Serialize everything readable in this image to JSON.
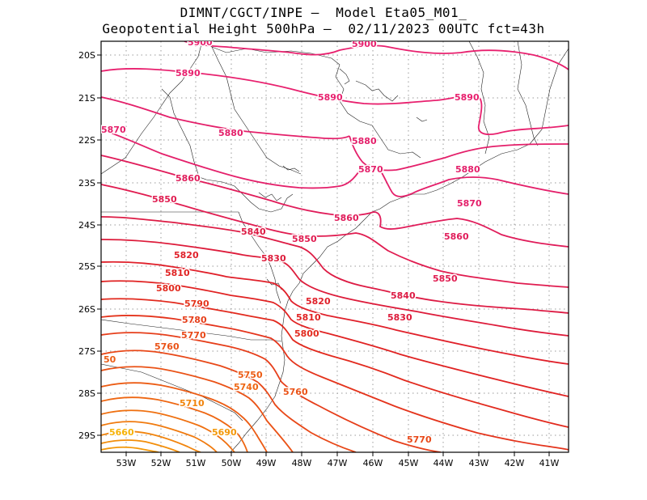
{
  "title_line1": "DIMNT/CGCT/INPE —  Model Eta05_M01_",
  "title_line2": "Geopotential Height 500hPa —  02/11/2023 00UTC fct=43h",
  "lat_labels": [
    "20S",
    "21S",
    "22S",
    "23S",
    "24S",
    "25S",
    "26S",
    "27S",
    "28S",
    "29S"
  ],
  "lon_labels": [
    "53W",
    "52W",
    "51W",
    "50W",
    "49W",
    "48W",
    "47W",
    "46W",
    "45W",
    "44W",
    "43W",
    "42W",
    "41W"
  ],
  "colors": {
    "c5900": "#e8206e",
    "c5890": "#e8206e",
    "c5880": "#e41f6a",
    "c5870": "#e41f6a",
    "c5860": "#e01c5a",
    "c5850": "#e01c50",
    "c5840": "#dd1b44",
    "c5830": "#dd1b3a",
    "c5820": "#e0202a",
    "c5810": "#e02222",
    "c5800": "#e22a1e",
    "c5790": "#e4341c",
    "c5780": "#e63e1a",
    "c5770": "#e84818",
    "c5760": "#ea5216",
    "c5750": "#ec5c14",
    "c5740": "#ee6612",
    "c5730": "#ef7010",
    "c5720": "#f07a0e",
    "c5710": "#f1840c",
    "c5700": "#f28e0a",
    "c5690": "#f39808",
    "c5680": "#f4a206",
    "c5670": "#f5aa06",
    "c5660": "#f6b206"
  },
  "contour_labels": [
    {
      "text": "5900",
      "level": "c5900"
    },
    {
      "text": "5900",
      "level": "c5900"
    },
    {
      "text": "5890",
      "level": "c5890"
    },
    {
      "text": "5890",
      "level": "c5890"
    },
    {
      "text": "5890",
      "level": "c5890"
    },
    {
      "text": "5870",
      "level": "c5870"
    },
    {
      "text": "5880",
      "level": "c5880"
    },
    {
      "text": "5880",
      "level": "c5880"
    },
    {
      "text": "5860",
      "level": "c5860"
    },
    {
      "text": "5870",
      "level": "c5870"
    },
    {
      "text": "5880",
      "level": "c5880"
    },
    {
      "text": "5850",
      "level": "c5850"
    },
    {
      "text": "5870",
      "level": "c5870"
    },
    {
      "text": "5860",
      "level": "c5860"
    },
    {
      "text": "5840",
      "level": "c5840"
    },
    {
      "text": "5850",
      "level": "c5850"
    },
    {
      "text": "5860",
      "level": "c5860"
    },
    {
      "text": "5820",
      "level": "c5820"
    },
    {
      "text": "5830",
      "level": "c5830"
    },
    {
      "text": "5810",
      "level": "c5810"
    },
    {
      "text": "5850",
      "level": "c5850"
    },
    {
      "text": "5800",
      "level": "c5800"
    },
    {
      "text": "5820",
      "level": "c5820"
    },
    {
      "text": "5840",
      "level": "c5840"
    },
    {
      "text": "5790",
      "level": "c5790"
    },
    {
      "text": "5780",
      "level": "c5780"
    },
    {
      "text": "5810",
      "level": "c5810"
    },
    {
      "text": "5830",
      "level": "c5830"
    },
    {
      "text": "5770",
      "level": "c5770"
    },
    {
      "text": "5800",
      "level": "c5800"
    },
    {
      "text": "5760",
      "level": "c5760"
    },
    {
      "text": "50",
      "level": "c5750"
    },
    {
      "text": "5750",
      "level": "c5750"
    },
    {
      "text": "5740",
      "level": "c5740"
    },
    {
      "text": "5760",
      "level": "c5760"
    },
    {
      "text": "5710",
      "level": "c5710"
    },
    {
      "text": "5690",
      "level": "c5690"
    },
    {
      "text": "5660",
      "level": "c5660"
    },
    {
      "text": "5770",
      "level": "c5770"
    }
  ]
}
